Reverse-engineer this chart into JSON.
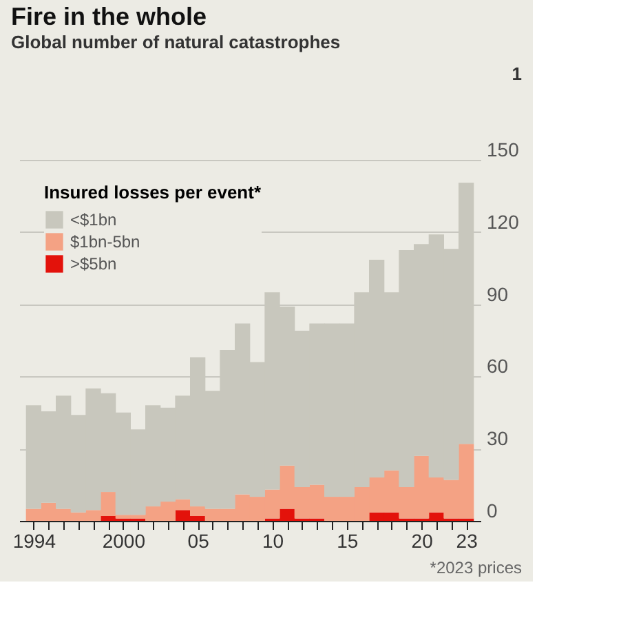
{
  "chart_data": {
    "type": "bar",
    "stacked": true,
    "title": "Fire in the whole",
    "subtitle": "Global number of natural catastrophes",
    "legend_title": "Insured losses per event*",
    "legend": "top left",
    "grid": "y",
    "annotations": [
      "1",
      "*2023 prices"
    ],
    "x": [
      1994,
      1995,
      1996,
      1997,
      1998,
      1999,
      2000,
      2001,
      2002,
      2003,
      2004,
      2005,
      2006,
      2007,
      2008,
      2009,
      2010,
      2011,
      2012,
      2013,
      2014,
      2015,
      2016,
      2017,
      2018,
      2019,
      2020,
      2021,
      2022,
      2023
    ],
    "xlim": [
      1993.5,
      2023.5
    ],
    "xticks": [
      1994,
      {
        "value": 1995,
        "label": null
      },
      {
        "value": 1996,
        "label": null
      },
      {
        "value": 1997,
        "label": null
      },
      {
        "value": 1998,
        "label": null
      },
      {
        "value": 1999,
        "label": null
      },
      2000,
      {
        "value": 2001,
        "label": null
      },
      {
        "value": 2002,
        "label": null
      },
      {
        "value": 2003,
        "label": null
      },
      {
        "value": 2004,
        "label": null
      },
      {
        "value": 2005,
        "label": "05"
      },
      {
        "value": 2006,
        "label": null
      },
      {
        "value": 2007,
        "label": null
      },
      {
        "value": 2008,
        "label": null
      },
      {
        "value": 2009,
        "label": null
      },
      {
        "value": 2010,
        "label": "10"
      },
      {
        "value": 2011,
        "label": null
      },
      {
        "value": 2012,
        "label": null
      },
      {
        "value": 2013,
        "label": null
      },
      {
        "value": 2014,
        "label": null
      },
      {
        "value": 2015,
        "label": "15"
      },
      {
        "value": 2016,
        "label": null
      },
      {
        "value": 2017,
        "label": null
      },
      {
        "value": 2018,
        "label": null
      },
      {
        "value": 2019,
        "label": null
      },
      {
        "value": 2020,
        "label": "20"
      },
      {
        "value": 2021,
        "label": null
      },
      {
        "value": 2022,
        "label": null
      },
      {
        "value": 2023,
        "label": "23"
      }
    ],
    "ylim": [
      0,
      150
    ],
    "yticks": [
      0,
      30,
      60,
      90,
      120,
      150
    ],
    "series": [
      {
        "name": ">$5bn",
        "color": "#e3120b",
        "values": [
          0,
          0,
          0,
          0,
          0,
          2,
          1,
          1,
          0,
          0,
          4.5,
          2,
          0,
          0,
          0,
          0,
          1,
          5,
          1,
          1,
          0,
          0,
          0,
          3.5,
          3.5,
          1,
          1,
          3.5,
          1,
          1
        ]
      },
      {
        "name": "$1bn-5bn",
        "color": "#f4a284",
        "values": [
          5,
          7.5,
          5,
          3.5,
          4.5,
          10,
          1.5,
          1.5,
          6,
          8,
          4.5,
          4,
          5,
          5,
          11,
          10,
          12,
          18,
          13,
          14,
          10,
          10,
          14,
          14.5,
          17.5,
          13,
          26,
          14.5,
          16,
          31
        ]
      },
      {
        "name": "<$1bn",
        "color": "#c8c7bd",
        "values": [
          43,
          38,
          47,
          40.5,
          50.5,
          41,
          42.5,
          35.5,
          42,
          39,
          43,
          62,
          49,
          66,
          71,
          56,
          82,
          66,
          65,
          67,
          72,
          72,
          81,
          90.5,
          74,
          98.5,
          88,
          101,
          96,
          108.5
        ]
      }
    ]
  }
}
